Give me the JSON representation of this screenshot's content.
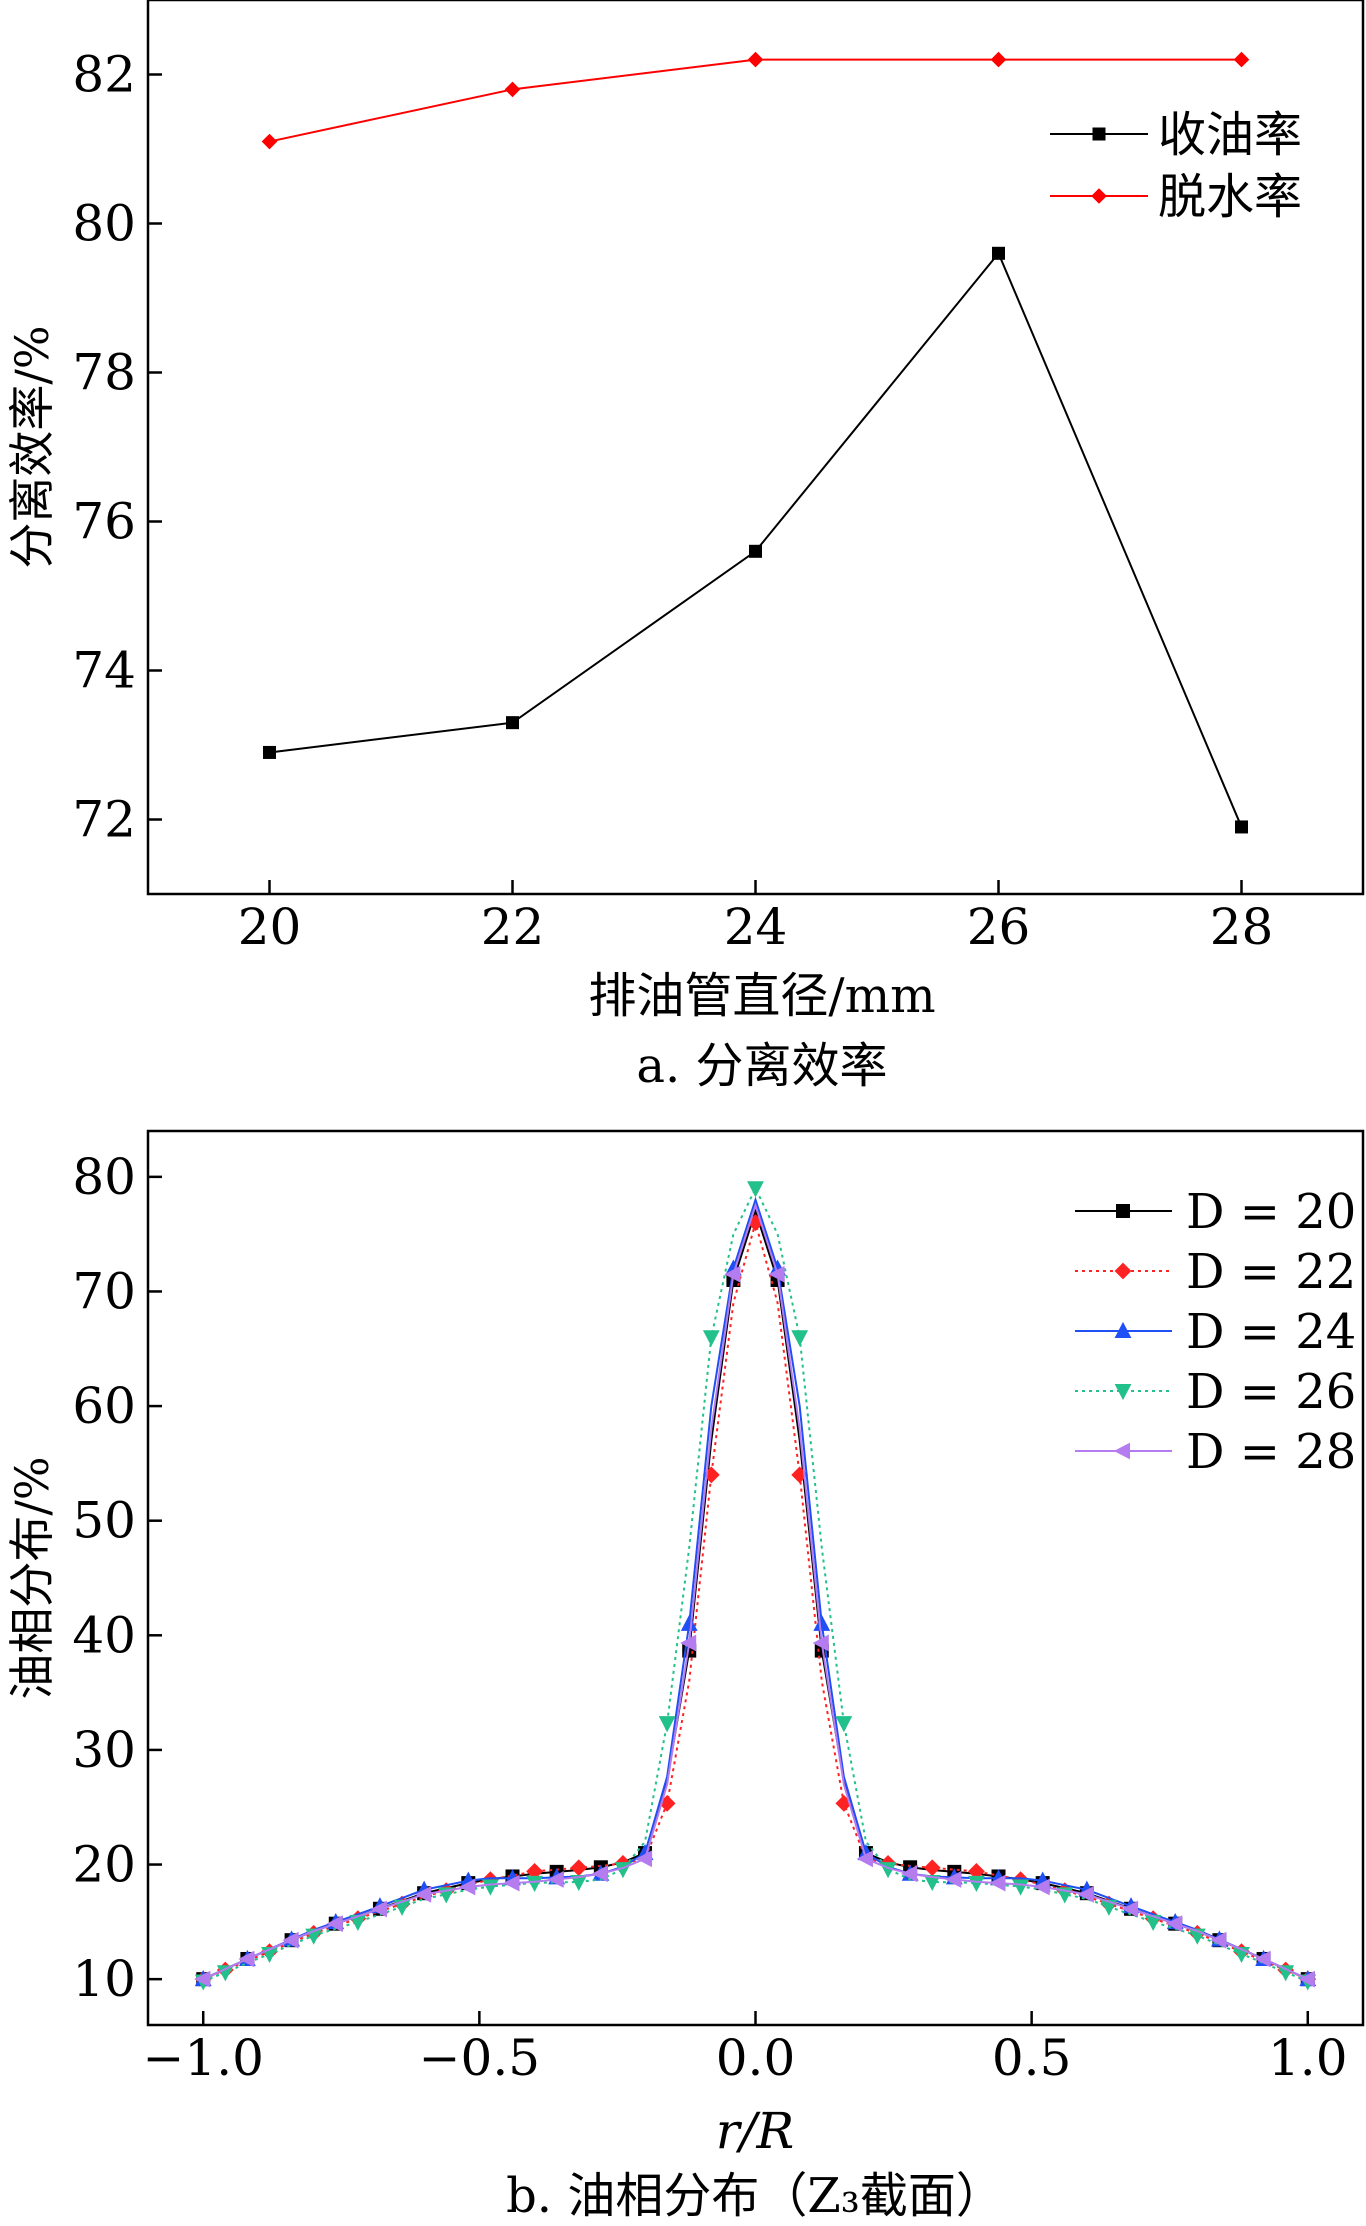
{
  "chart_data": [
    {
      "type": "line",
      "caption": "a. 分离效率",
      "xlabel": "排油管直径/mm",
      "ylabel": "分离效率/%",
      "xlim": [
        19,
        29
      ],
      "ylim": [
        71,
        83
      ],
      "xticks": [
        "20",
        "22",
        "24",
        "26",
        "28"
      ],
      "yticks": [
        "72",
        "74",
        "76",
        "78",
        "80",
        "82"
      ],
      "legend_position": "top-right",
      "x": [
        20,
        22,
        24,
        26,
        28
      ],
      "series": [
        {
          "name": "收油率",
          "color": "#000000",
          "marker": "square",
          "values": [
            72.9,
            73.3,
            75.6,
            79.6,
            71.9
          ]
        },
        {
          "name": "脱水率",
          "color": "#ff0000",
          "marker": "diamond",
          "values": [
            81.1,
            81.8,
            82.2,
            82.2,
            82.2
          ]
        }
      ]
    },
    {
      "type": "line",
      "caption": "b. 油相分布（Z₃截面）",
      "xlabel": "r/R",
      "ylabel": "油相分布/%",
      "xlim": [
        -1.1,
        1.1
      ],
      "ylim": [
        6,
        84
      ],
      "xticks": [
        "−1.0",
        "−0.5",
        "0.0",
        "0.5",
        "1.0"
      ],
      "yticks": [
        "10",
        "20",
        "30",
        "40",
        "50",
        "60",
        "70",
        "80"
      ],
      "legend_position": "top-right",
      "profile_r": [
        0,
        0.04,
        0.08,
        0.11,
        0.14,
        0.17,
        0.2,
        0.25,
        0.3,
        0.4,
        0.5,
        0.6,
        0.7,
        0.8,
        0.9,
        1.0
      ],
      "series": [
        {
          "name": "D = 20",
          "color": "#000000",
          "marker": "square",
          "line": "solid",
          "profile_values": [
            77,
            71,
            57,
            42,
            32,
            25,
            21,
            20,
            19.6,
            19.2,
            18.6,
            17.5,
            15.8,
            14.2,
            12.2,
            10
          ]
        },
        {
          "name": "D = 22",
          "color": "#ff2222",
          "marker": "diamond",
          "line": "dotted",
          "profile_values": [
            76,
            69,
            54,
            39,
            30,
            23,
            20.5,
            20,
            19.8,
            19.4,
            18.5,
            17.2,
            15.6,
            14,
            12,
            10
          ]
        },
        {
          "name": "D = 24",
          "color": "#1f4ff5",
          "marker": "triangle-up",
          "line": "solid",
          "profile_values": [
            78,
            72,
            60,
            45,
            33,
            25,
            21,
            19.5,
            19,
            18.8,
            18.8,
            17.8,
            16,
            14.3,
            12.2,
            10
          ]
        },
        {
          "name": "D = 26",
          "color": "#22c08a",
          "marker": "triangle-down",
          "line": "dotted",
          "profile_values": [
            79,
            75,
            66,
            52,
            39,
            29,
            22,
            19,
            18.5,
            18.4,
            18,
            17,
            15.3,
            13.8,
            11.8,
            9.8
          ]
        },
        {
          "name": "D = 28",
          "color": "#b57cf0",
          "marker": "triangle-left",
          "line": "solid",
          "profile_values": [
            77.5,
            71.5,
            58,
            43,
            32,
            24.5,
            20.5,
            19.5,
            19,
            18.5,
            18.2,
            17.4,
            15.8,
            14.2,
            12.2,
            10
          ]
        }
      ]
    }
  ]
}
